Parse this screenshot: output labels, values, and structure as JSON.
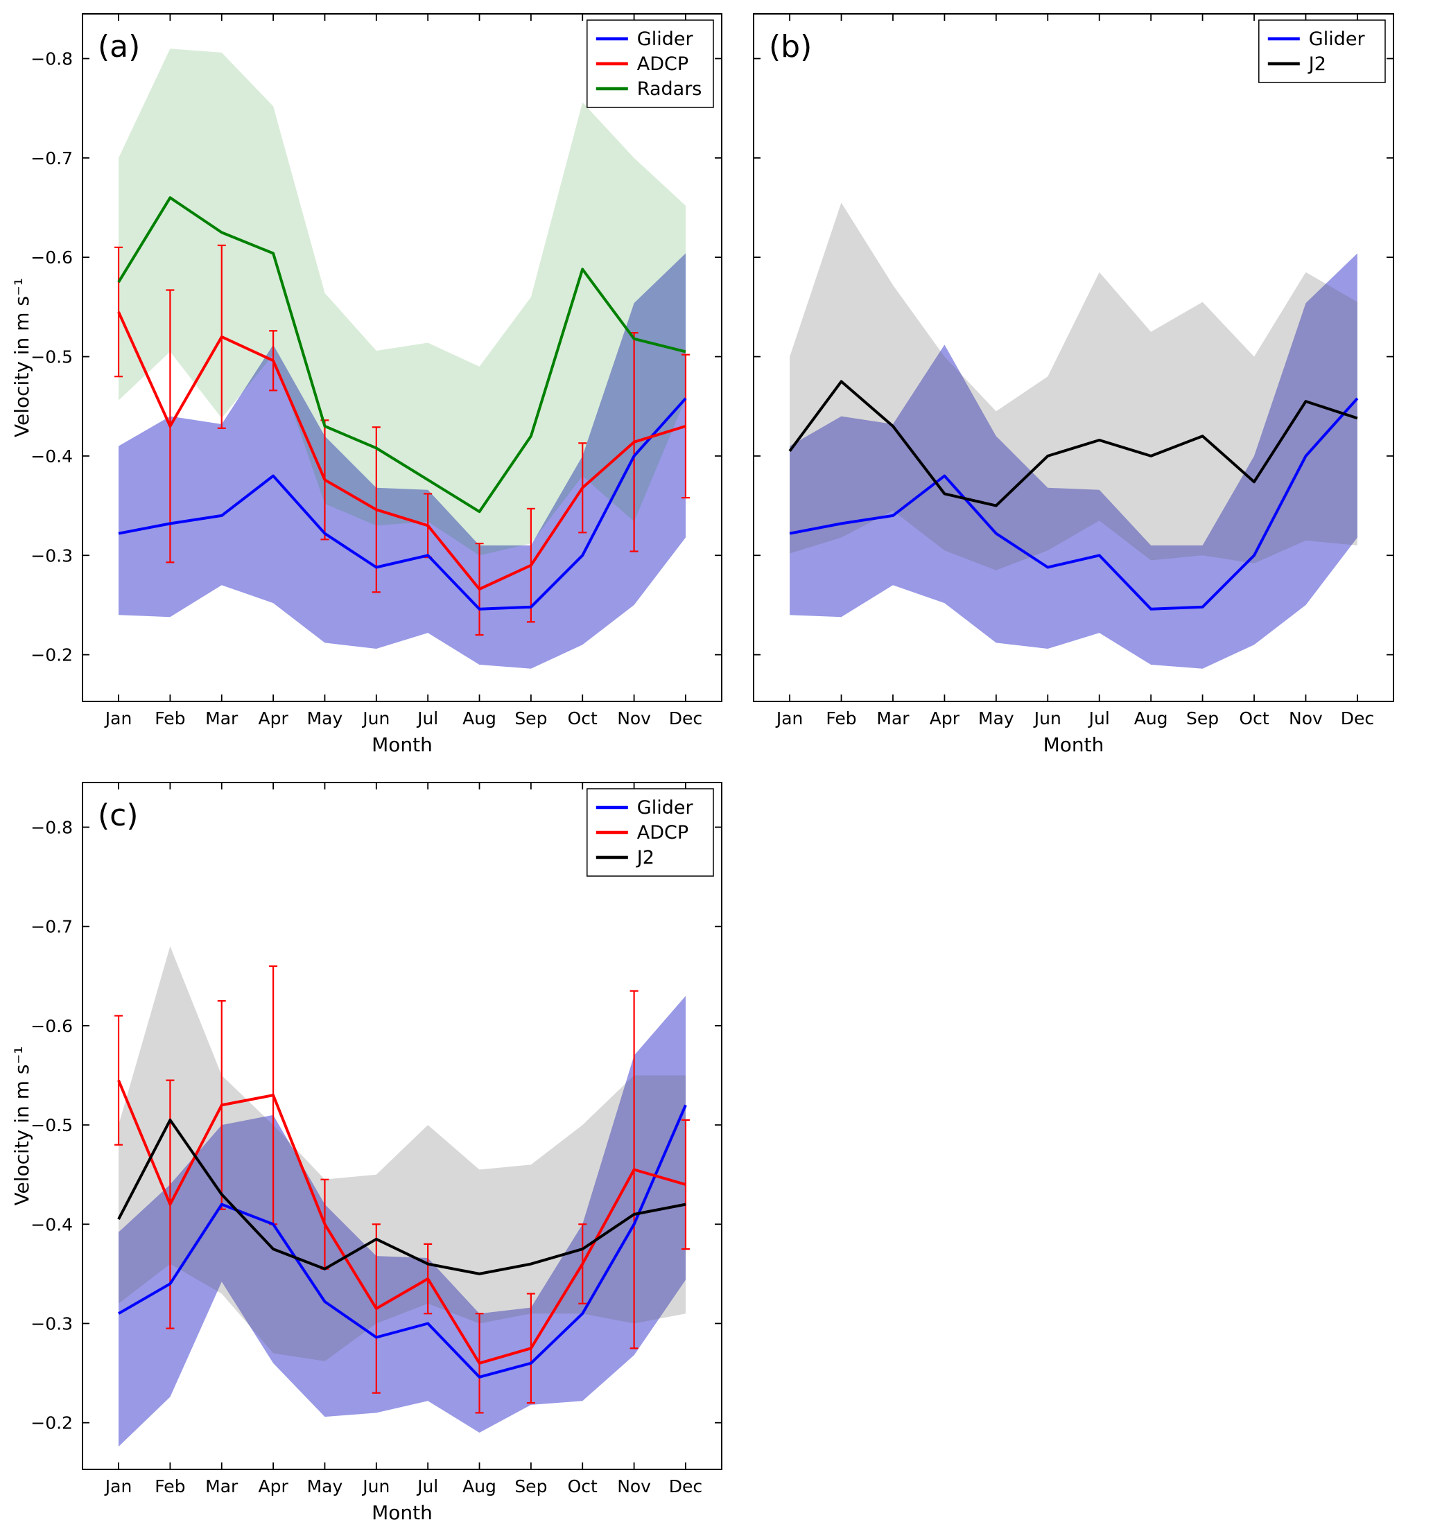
{
  "figure": {
    "background": "#ffffff"
  },
  "chart_data": {
    "type": "line",
    "xlabel": "Month",
    "ylabel": "Velocity in m s⁻¹",
    "categories": [
      "Jan",
      "Feb",
      "Mar",
      "Apr",
      "May",
      "Jun",
      "Jul",
      "Aug",
      "Sep",
      "Oct",
      "Nov",
      "Dec"
    ],
    "yticks": [
      -0.8,
      -0.7,
      -0.6,
      -0.5,
      -0.4,
      -0.3,
      -0.2
    ],
    "ytick_labels": [
      "−0.8",
      "−0.7",
      "−0.6",
      "−0.5",
      "−0.4",
      "−0.3",
      "−0.2"
    ],
    "ylim": {
      "top": -0.845,
      "bottom": -0.153
    },
    "axis_inverted": true,
    "grid": false,
    "legend_position": "upper right",
    "panels": [
      {
        "label": "(a)",
        "show_ylabel": true,
        "show_ytick_labels": true,
        "legend": [
          "Glider",
          "ADCP",
          "Radars"
        ],
        "series": [
          {
            "name": "Glider",
            "color": "#0000ff",
            "band_color": "rgba(70,70,210,0.55)",
            "values": [
              -0.322,
              -0.332,
              -0.34,
              -0.38,
              -0.322,
              -0.288,
              -0.3,
              -0.246,
              -0.248,
              -0.3,
              -0.4,
              -0.458
            ],
            "band_upper": [
              -0.41,
              -0.44,
              -0.432,
              -0.512,
              -0.42,
              -0.368,
              -0.366,
              -0.31,
              -0.31,
              -0.4,
              -0.554,
              -0.604
            ],
            "band_lower": [
              -0.24,
              -0.238,
              -0.27,
              -0.252,
              -0.212,
              -0.206,
              -0.222,
              -0.19,
              -0.186,
              -0.21,
              -0.25,
              -0.318
            ]
          },
          {
            "name": "ADCP",
            "color": "#ff0000",
            "values": [
              -0.545,
              -0.43,
              -0.52,
              -0.496,
              -0.376,
              -0.346,
              -0.33,
              -0.266,
              -0.29,
              -0.368,
              -0.414,
              -0.43
            ],
            "yerr": [
              0.065,
              0.137,
              0.092,
              0.03,
              0.06,
              0.083,
              0.032,
              0.046,
              0.057,
              0.045,
              0.11,
              0.072
            ]
          },
          {
            "name": "Radars",
            "color": "#008000",
            "band_color": "rgba(0,128,0,0.15)",
            "values": [
              -0.575,
              -0.66,
              -0.625,
              -0.604,
              -0.43,
              -0.408,
              -0.376,
              -0.344,
              -0.42,
              -0.588,
              -0.518,
              -0.505
            ],
            "band_upper": [
              -0.7,
              -0.81,
              -0.806,
              -0.752,
              -0.564,
              -0.506,
              -0.514,
              -0.49,
              -0.56,
              -0.756,
              -0.7,
              -0.652
            ],
            "band_lower": [
              -0.456,
              -0.505,
              -0.438,
              -0.502,
              -0.352,
              -0.33,
              -0.334,
              -0.3,
              -0.312,
              -0.38,
              -0.334,
              -0.458
            ]
          }
        ]
      },
      {
        "label": "(b)",
        "show_ylabel": false,
        "show_ytick_labels": false,
        "legend": [
          "Glider",
          "J2"
        ],
        "series": [
          {
            "name": "Glider",
            "color": "#0000ff",
            "band_color": "rgba(70,70,210,0.55)",
            "values": [
              -0.322,
              -0.332,
              -0.34,
              -0.38,
              -0.322,
              -0.288,
              -0.3,
              -0.246,
              -0.248,
              -0.3,
              -0.4,
              -0.458
            ],
            "band_upper": [
              -0.41,
              -0.44,
              -0.432,
              -0.512,
              -0.42,
              -0.368,
              -0.366,
              -0.31,
              -0.31,
              -0.4,
              -0.554,
              -0.604
            ],
            "band_lower": [
              -0.24,
              -0.238,
              -0.27,
              -0.252,
              -0.212,
              -0.206,
              -0.222,
              -0.19,
              -0.186,
              -0.21,
              -0.25,
              -0.318
            ]
          },
          {
            "name": "J2",
            "color": "#000000",
            "band_color": "rgba(100,100,100,0.25)",
            "values": [
              -0.405,
              -0.475,
              -0.43,
              -0.362,
              -0.35,
              -0.4,
              -0.416,
              -0.4,
              -0.42,
              -0.374,
              -0.455,
              -0.438
            ],
            "band_upper": [
              -0.5,
              -0.655,
              -0.572,
              -0.5,
              -0.445,
              -0.48,
              -0.585,
              -0.525,
              -0.555,
              -0.5,
              -0.585,
              -0.555
            ],
            "band_lower": [
              -0.302,
              -0.318,
              -0.345,
              -0.305,
              -0.285,
              -0.305,
              -0.335,
              -0.295,
              -0.3,
              -0.292,
              -0.315,
              -0.31
            ]
          }
        ]
      },
      {
        "label": "(c)",
        "show_ylabel": true,
        "show_ytick_labels": true,
        "legend": [
          "Glider",
          "ADCP",
          "J2"
        ],
        "series": [
          {
            "name": "Glider",
            "color": "#0000ff",
            "band_color": "rgba(70,70,210,0.55)",
            "values": [
              -0.31,
              -0.34,
              -0.42,
              -0.4,
              -0.322,
              -0.286,
              -0.3,
              -0.246,
              -0.26,
              -0.31,
              -0.4,
              -0.52
            ],
            "band_upper": [
              -0.392,
              -0.44,
              -0.5,
              -0.51,
              -0.42,
              -0.368,
              -0.366,
              -0.31,
              -0.316,
              -0.4,
              -0.57,
              -0.63
            ],
            "band_lower": [
              -0.176,
              -0.226,
              -0.342,
              -0.26,
              -0.206,
              -0.21,
              -0.222,
              -0.19,
              -0.218,
              -0.222,
              -0.268,
              -0.344
            ]
          },
          {
            "name": "ADCP",
            "color": "#ff0000",
            "values": [
              -0.545,
              -0.42,
              -0.52,
              -0.53,
              -0.4,
              -0.315,
              -0.345,
              -0.26,
              -0.275,
              -0.36,
              -0.455,
              -0.44
            ],
            "yerr": [
              0.065,
              0.125,
              0.105,
              0.13,
              0.045,
              0.085,
              0.035,
              0.05,
              0.055,
              0.04,
              0.18,
              0.065
            ]
          },
          {
            "name": "J2",
            "color": "#000000",
            "band_color": "rgba(100,100,100,0.25)",
            "values": [
              -0.405,
              -0.505,
              -0.43,
              -0.375,
              -0.355,
              -0.385,
              -0.36,
              -0.35,
              -0.36,
              -0.375,
              -0.41,
              -0.42
            ],
            "band_upper": [
              -0.5,
              -0.68,
              -0.55,
              -0.5,
              -0.445,
              -0.45,
              -0.5,
              -0.455,
              -0.46,
              -0.5,
              -0.55,
              -0.55
            ],
            "band_lower": [
              -0.32,
              -0.36,
              -0.33,
              -0.27,
              -0.262,
              -0.3,
              -0.32,
              -0.3,
              -0.31,
              -0.31,
              -0.3,
              -0.31
            ]
          }
        ]
      }
    ]
  }
}
